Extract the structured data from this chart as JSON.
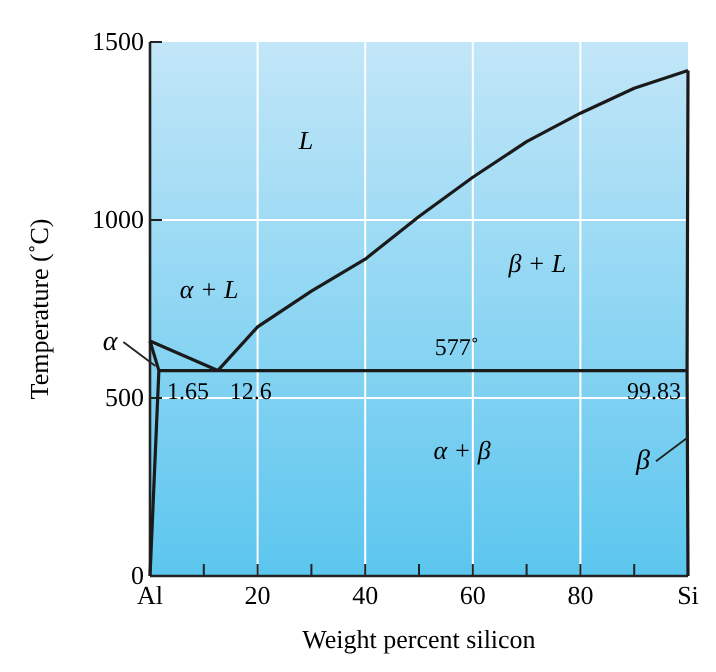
{
  "chart_data": {
    "type": "line",
    "xlabel": "Weight percent silicon",
    "ylabel": "Temperature (˚C)",
    "xlim": [
      0,
      100
    ],
    "ylim": [
      0,
      1500
    ],
    "xticks": [
      {
        "value": 0,
        "label": "Al"
      },
      {
        "value": 10,
        "label": null
      },
      20,
      {
        "value": 30,
        "label": null
      },
      40,
      {
        "value": 50,
        "label": null
      },
      60,
      {
        "value": 70,
        "label": null
      },
      80,
      {
        "value": 90,
        "label": null
      },
      {
        "value": 100,
        "label": "Si"
      }
    ],
    "yticks": [
      0,
      500,
      1000,
      1500
    ],
    "grid": true,
    "marker": "none",
    "line_style": "solid",
    "series": [
      {
        "color": "#1a1a1a",
        "x": [
          0,
          12.6
        ],
        "values": [
          660,
          577
        ]
      },
      {
        "color": "#1a1a1a",
        "x": [
          12.6,
          20,
          30,
          40,
          50,
          60,
          70,
          80,
          90,
          100
        ],
        "values": [
          577,
          700,
          800,
          890,
          1010,
          1120,
          1220,
          1300,
          1370,
          1420
        ]
      },
      {
        "color": "#1a1a1a",
        "x": [
          0,
          1.65,
          0
        ],
        "values": [
          660,
          577,
          0
        ]
      },
      {
        "color": "#1a1a1a",
        "x": [
          1.65,
          99.83
        ],
        "values": [
          577,
          577
        ]
      },
      {
        "color": "#1a1a1a",
        "x": [
          100,
          99.83,
          100
        ],
        "values": [
          1420,
          577,
          0
        ]
      }
    ],
    "annotations": [
      "L",
      "α + L",
      "β + L",
      "α + β",
      {
        "text": "577˚",
        "x": 57,
        "y": 577
      },
      {
        "text": "1.65",
        "x": 1.65,
        "y": 577
      },
      {
        "text": "12.6",
        "x": 12.6,
        "y": 577
      },
      {
        "text": "99.83",
        "x": 99.83,
        "y": 577
      },
      {
        "text": "α",
        "x": 1,
        "y": 590
      },
      {
        "text": "β",
        "x": 100,
        "y": 390
      }
    ]
  }
}
